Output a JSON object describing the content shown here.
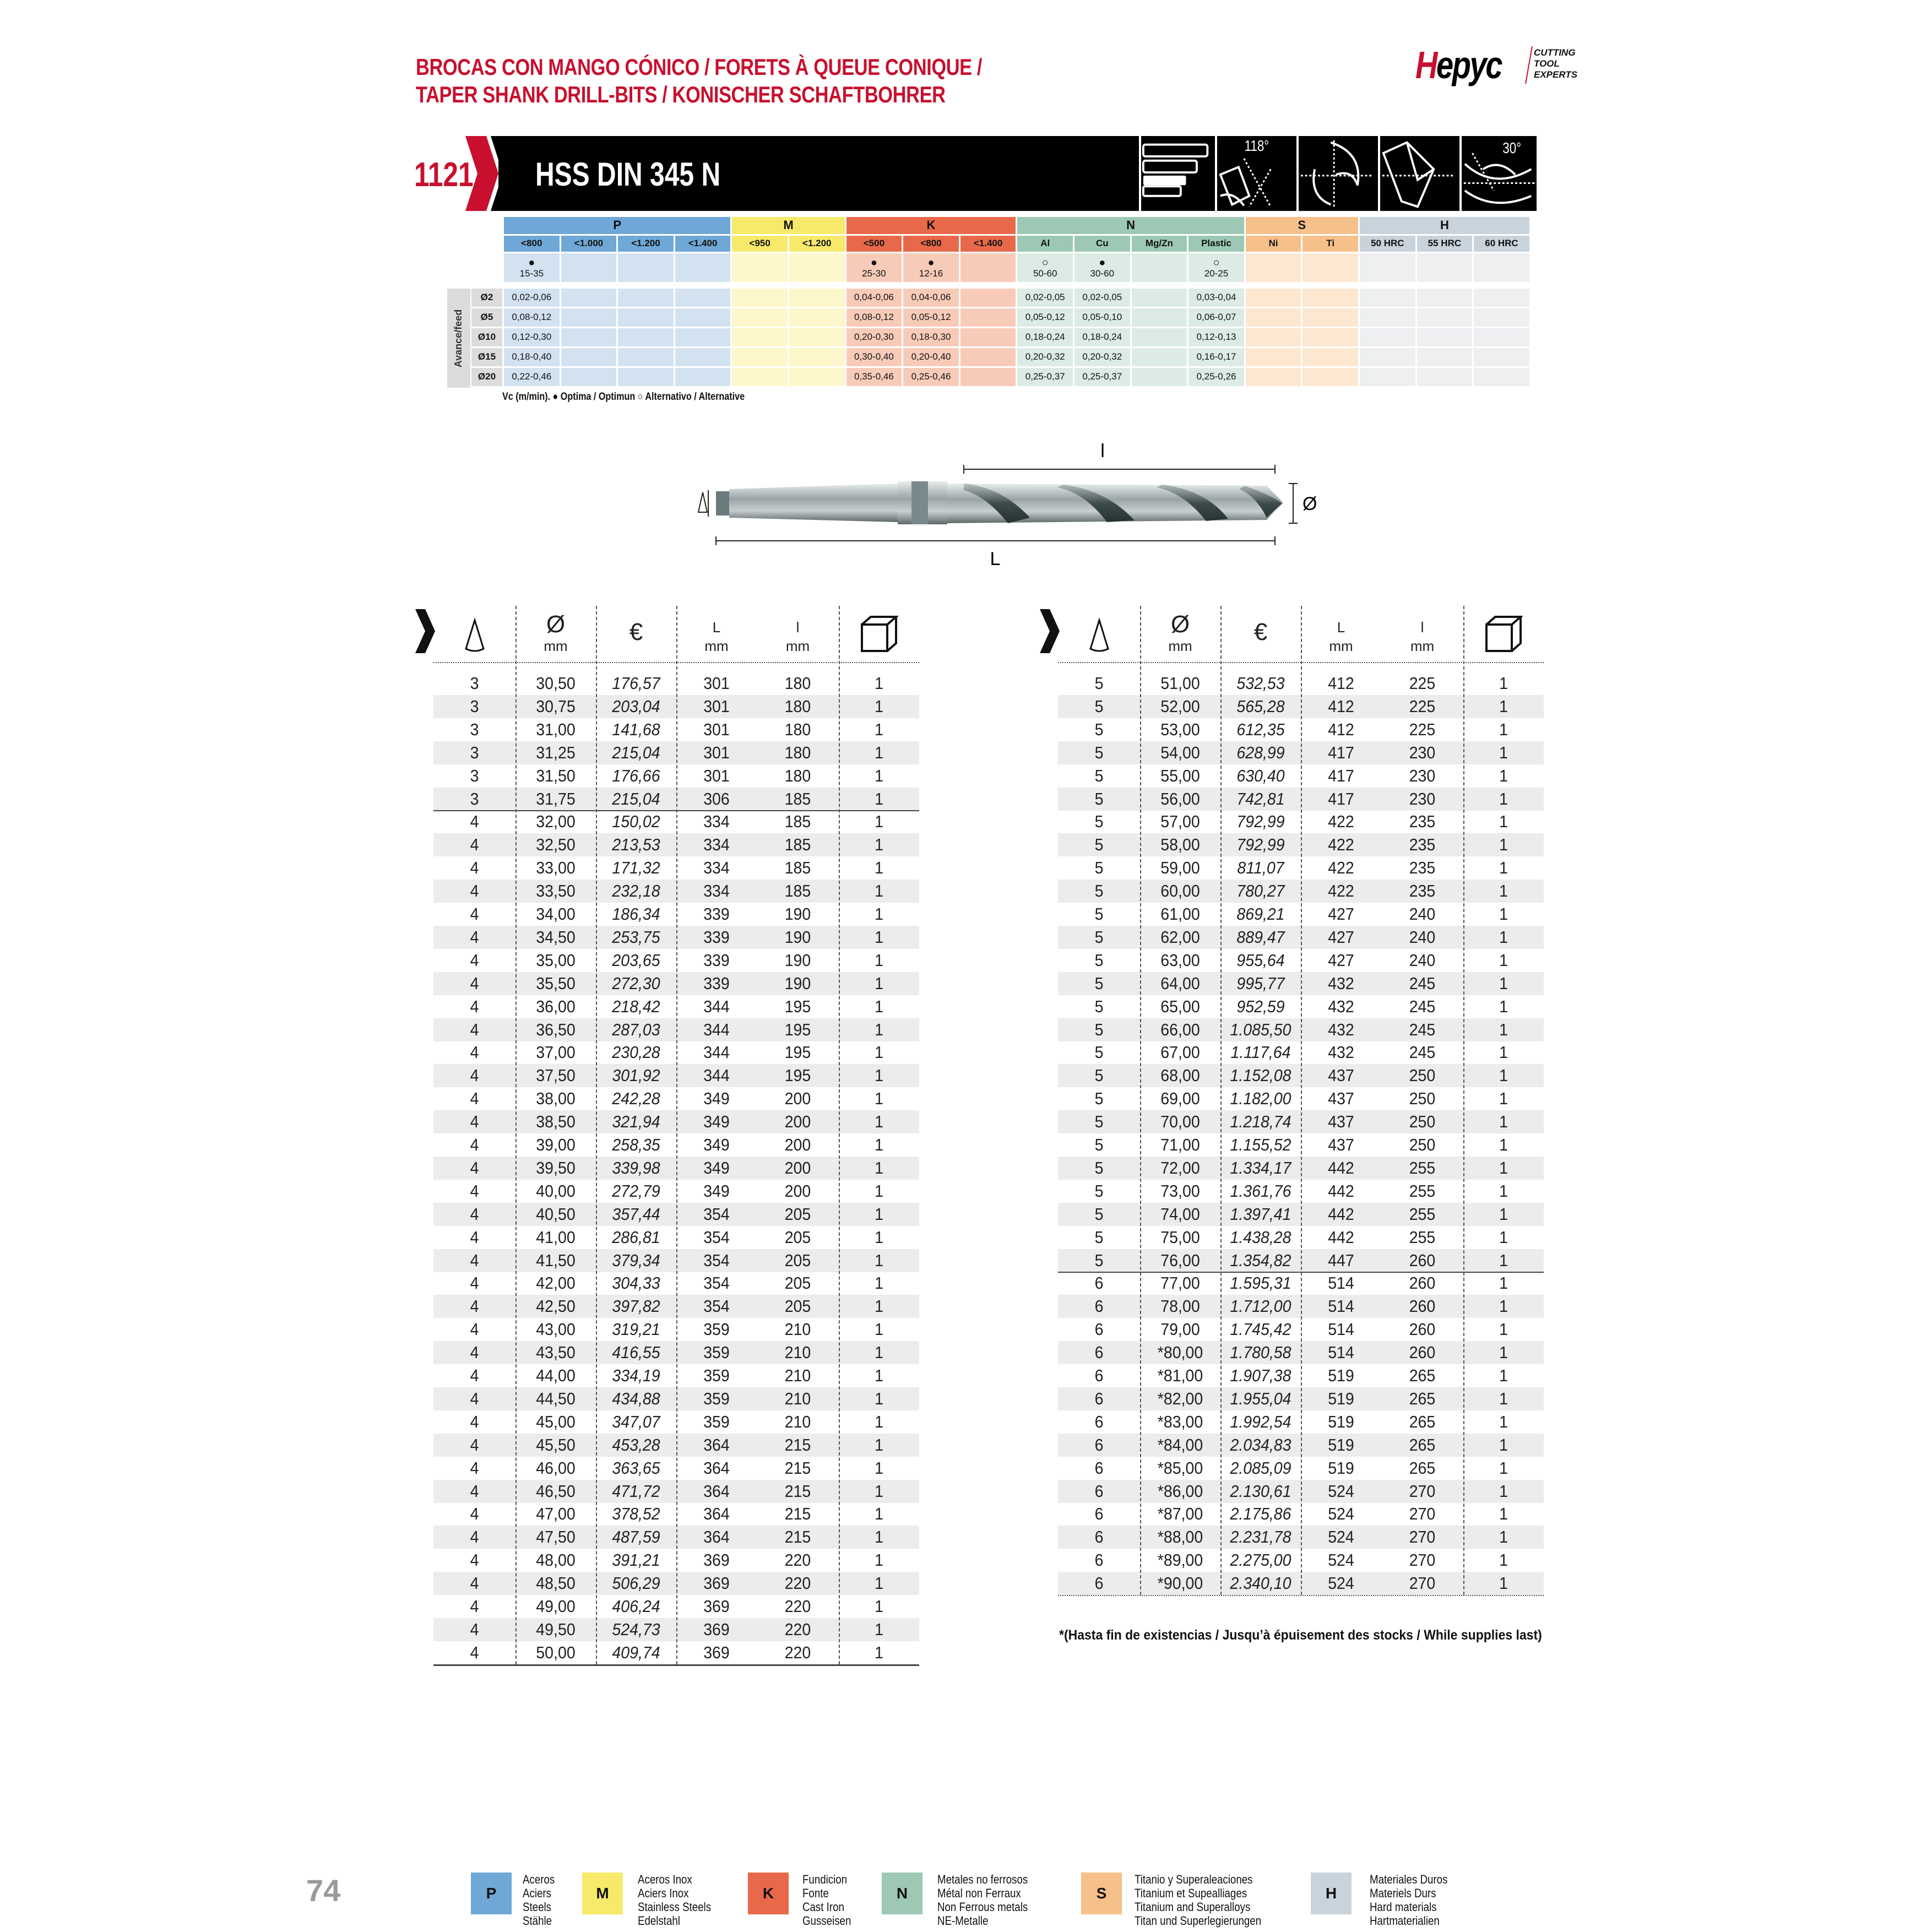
{
  "header": {
    "title_line1": "BROCAS CON MANGO CÓNICO / FORETS À QUEUE CONIQUE /",
    "title_line2": "TAPER SHANK DRILL-BITS / KONISCHER SCHAFTBOHRER",
    "logo": {
      "mark_red": "H",
      "mark": "epyc",
      "tagline": [
        "CUTTING",
        "TOOL",
        "EXPERTS"
      ]
    },
    "brand_color": "#c8102e"
  },
  "banner": {
    "code": "1121",
    "product": "HSS DIN 345 N",
    "icons": [
      {
        "name": "taper-shank-icon"
      },
      {
        "name": "point-angle-icon",
        "label": "118°"
      },
      {
        "name": "drill-type-n-icon"
      },
      {
        "name": "point-geometry-icon"
      },
      {
        "name": "helix-angle-icon",
        "label": "30°"
      }
    ]
  },
  "materials_table": {
    "row_label": "Avance/feed",
    "diameters": [
      "Ø2",
      "Ø5",
      "Ø10",
      "Ø15",
      "Ø20"
    ],
    "groups": [
      {
        "code": "P",
        "color": "#6fa8d6",
        "light": "#d3e2f1",
        "columns": [
          {
            "label": "<800",
            "mark": "optimum",
            "vc": "15-35",
            "feed": [
              "0,02-0,06",
              "0,08-0,12",
              "0,12-0,30",
              "0,18-0,40",
              "0,22-0,46"
            ]
          },
          {
            "label": "<1.000",
            "mark": "",
            "vc": "",
            "feed": [
              "",
              "",
              "",
              "",
              ""
            ]
          },
          {
            "label": "<1.200",
            "mark": "",
            "vc": "",
            "feed": [
              "",
              "",
              "",
              "",
              ""
            ]
          },
          {
            "label": "<1.400",
            "mark": "",
            "vc": "",
            "feed": [
              "",
              "",
              "",
              "",
              ""
            ]
          }
        ]
      },
      {
        "code": "M",
        "color": "#f7ea6a",
        "light": "#fdf7cb",
        "columns": [
          {
            "label": "<950",
            "mark": "",
            "vc": "",
            "feed": [
              "",
              "",
              "",
              "",
              ""
            ]
          },
          {
            "label": "<1.200",
            "mark": "",
            "vc": "",
            "feed": [
              "",
              "",
              "",
              "",
              ""
            ]
          }
        ]
      },
      {
        "code": "K",
        "color": "#e8694a",
        "light": "#f8cbb9",
        "columns": [
          {
            "label": "<500",
            "mark": "optimum",
            "vc": "25-30",
            "feed": [
              "0,04-0,06",
              "0,08-0,12",
              "0,20-0,30",
              "0,30-0,40",
              "0,35-0,46"
            ]
          },
          {
            "label": "<800",
            "mark": "optimum",
            "vc": "12-16",
            "feed": [
              "0,04-0,06",
              "0,05-0,12",
              "0,18-0,30",
              "0,20-0,40",
              "0,25-0,46"
            ]
          },
          {
            "label": "<1.400",
            "mark": "",
            "vc": "",
            "feed": [
              "",
              "",
              "",
              "",
              ""
            ]
          }
        ]
      },
      {
        "code": "N",
        "color": "#9cc8b4",
        "light": "#dcece4",
        "columns": [
          {
            "label": "Al",
            "mark": "alternative",
            "vc": "50-60",
            "feed": [
              "0,02-0,05",
              "0,05-0,12",
              "0,18-0,24",
              "0,20-0,32",
              "0,25-0,37"
            ]
          },
          {
            "label": "Cu",
            "mark": "optimum",
            "vc": "30-60",
            "feed": [
              "0,02-0,05",
              "0,05-0,10",
              "0,18-0,24",
              "0,20-0,32",
              "0,25-0,37"
            ]
          },
          {
            "label": "Mg/Zn",
            "mark": "",
            "vc": "",
            "feed": [
              "",
              "",
              "",
              "",
              ""
            ]
          },
          {
            "label": "Plastic",
            "mark": "alternative",
            "vc": "20-25",
            "feed": [
              "0,03-0,04",
              "0,06-0,07",
              "0,12-0,13",
              "0,16-0,17",
              "0,25-0,26"
            ]
          }
        ]
      },
      {
        "code": "S",
        "color": "#f6c08a",
        "light": "#fde7d1",
        "columns": [
          {
            "label": "Ni",
            "mark": "",
            "vc": "",
            "feed": [
              "",
              "",
              "",
              "",
              ""
            ]
          },
          {
            "label": "Ti",
            "mark": "",
            "vc": "",
            "feed": [
              "",
              "",
              "",
              "",
              ""
            ]
          }
        ]
      },
      {
        "code": "H",
        "color": "#c9d3dc",
        "light": "#edeff1",
        "columns": [
          {
            "label": "50 HRC",
            "mark": "",
            "vc": "",
            "feed": [
              "",
              "",
              "",
              "",
              ""
            ]
          },
          {
            "label": "55 HRC",
            "mark": "",
            "vc": "",
            "feed": [
              "",
              "",
              "",
              "",
              ""
            ]
          },
          {
            "label": "60 HRC",
            "mark": "",
            "vc": "",
            "feed": [
              "",
              "",
              "",
              "",
              ""
            ]
          }
        ]
      }
    ],
    "note": "Vc (m/min). ● Optima / Optimun  ○ Alternativo / Alternative"
  },
  "drawing": {
    "label_l": "l",
    "label_L": "L",
    "label_diameter": "Ø"
  },
  "product_table": {
    "headers": {
      "cone": "cone-icon",
      "diameter_symbol": "Ø",
      "diameter_unit": "mm",
      "price_symbol": "€",
      "L_label": "L",
      "L_unit": "mm",
      "l_label": "l",
      "l_unit": "mm",
      "pack": "box-icon"
    },
    "left_rows": [
      [
        "3",
        "30,50",
        "176,57",
        "301",
        "180",
        "1"
      ],
      [
        "3",
        "30,75",
        "203,04",
        "301",
        "180",
        "1"
      ],
      [
        "3",
        "31,00",
        "141,68",
        "301",
        "180",
        "1"
      ],
      [
        "3",
        "31,25",
        "215,04",
        "301",
        "180",
        "1"
      ],
      [
        "3",
        "31,50",
        "176,66",
        "301",
        "180",
        "1"
      ],
      [
        "3",
        "31,75",
        "215,04",
        "306",
        "185",
        "1"
      ],
      [
        "4",
        "32,00",
        "150,02",
        "334",
        "185",
        "1"
      ],
      [
        "4",
        "32,50",
        "213,53",
        "334",
        "185",
        "1"
      ],
      [
        "4",
        "33,00",
        "171,32",
        "334",
        "185",
        "1"
      ],
      [
        "4",
        "33,50",
        "232,18",
        "334",
        "185",
        "1"
      ],
      [
        "4",
        "34,00",
        "186,34",
        "339",
        "190",
        "1"
      ],
      [
        "4",
        "34,50",
        "253,75",
        "339",
        "190",
        "1"
      ],
      [
        "4",
        "35,00",
        "203,65",
        "339",
        "190",
        "1"
      ],
      [
        "4",
        "35,50",
        "272,30",
        "339",
        "190",
        "1"
      ],
      [
        "4",
        "36,00",
        "218,42",
        "344",
        "195",
        "1"
      ],
      [
        "4",
        "36,50",
        "287,03",
        "344",
        "195",
        "1"
      ],
      [
        "4",
        "37,00",
        "230,28",
        "344",
        "195",
        "1"
      ],
      [
        "4",
        "37,50",
        "301,92",
        "344",
        "195",
        "1"
      ],
      [
        "4",
        "38,00",
        "242,28",
        "349",
        "200",
        "1"
      ],
      [
        "4",
        "38,50",
        "321,94",
        "349",
        "200",
        "1"
      ],
      [
        "4",
        "39,00",
        "258,35",
        "349",
        "200",
        "1"
      ],
      [
        "4",
        "39,50",
        "339,98",
        "349",
        "200",
        "1"
      ],
      [
        "4",
        "40,00",
        "272,79",
        "349",
        "200",
        "1"
      ],
      [
        "4",
        "40,50",
        "357,44",
        "354",
        "205",
        "1"
      ],
      [
        "4",
        "41,00",
        "286,81",
        "354",
        "205",
        "1"
      ],
      [
        "4",
        "41,50",
        "379,34",
        "354",
        "205",
        "1"
      ],
      [
        "4",
        "42,00",
        "304,33",
        "354",
        "205",
        "1"
      ],
      [
        "4",
        "42,50",
        "397,82",
        "354",
        "205",
        "1"
      ],
      [
        "4",
        "43,00",
        "319,21",
        "359",
        "210",
        "1"
      ],
      [
        "4",
        "43,50",
        "416,55",
        "359",
        "210",
        "1"
      ],
      [
        "4",
        "44,00",
        "334,19",
        "359",
        "210",
        "1"
      ],
      [
        "4",
        "44,50",
        "434,88",
        "359",
        "210",
        "1"
      ],
      [
        "4",
        "45,00",
        "347,07",
        "359",
        "210",
        "1"
      ],
      [
        "4",
        "45,50",
        "453,28",
        "364",
        "215",
        "1"
      ],
      [
        "4",
        "46,00",
        "363,65",
        "364",
        "215",
        "1"
      ],
      [
        "4",
        "46,50",
        "471,72",
        "364",
        "215",
        "1"
      ],
      [
        "4",
        "47,00",
        "378,52",
        "364",
        "215",
        "1"
      ],
      [
        "4",
        "47,50",
        "487,59",
        "364",
        "215",
        "1"
      ],
      [
        "4",
        "48,00",
        "391,21",
        "369",
        "220",
        "1"
      ],
      [
        "4",
        "48,50",
        "506,29",
        "369",
        "220",
        "1"
      ],
      [
        "4",
        "49,00",
        "406,24",
        "369",
        "220",
        "1"
      ],
      [
        "4",
        "49,50",
        "524,73",
        "369",
        "220",
        "1"
      ],
      [
        "4",
        "50,00",
        "409,74",
        "369",
        "220",
        "1"
      ]
    ],
    "right_rows": [
      [
        "5",
        "51,00",
        "532,53",
        "412",
        "225",
        "1"
      ],
      [
        "5",
        "52,00",
        "565,28",
        "412",
        "225",
        "1"
      ],
      [
        "5",
        "53,00",
        "612,35",
        "412",
        "225",
        "1"
      ],
      [
        "5",
        "54,00",
        "628,99",
        "417",
        "230",
        "1"
      ],
      [
        "5",
        "55,00",
        "630,40",
        "417",
        "230",
        "1"
      ],
      [
        "5",
        "56,00",
        "742,81",
        "417",
        "230",
        "1"
      ],
      [
        "5",
        "57,00",
        "792,99",
        "422",
        "235",
        "1"
      ],
      [
        "5",
        "58,00",
        "792,99",
        "422",
        "235",
        "1"
      ],
      [
        "5",
        "59,00",
        "811,07",
        "422",
        "235",
        "1"
      ],
      [
        "5",
        "60,00",
        "780,27",
        "422",
        "235",
        "1"
      ],
      [
        "5",
        "61,00",
        "869,21",
        "427",
        "240",
        "1"
      ],
      [
        "5",
        "62,00",
        "889,47",
        "427",
        "240",
        "1"
      ],
      [
        "5",
        "63,00",
        "955,64",
        "427",
        "240",
        "1"
      ],
      [
        "5",
        "64,00",
        "995,77",
        "432",
        "245",
        "1"
      ],
      [
        "5",
        "65,00",
        "952,59",
        "432",
        "245",
        "1"
      ],
      [
        "5",
        "66,00",
        "1.085,50",
        "432",
        "245",
        "1"
      ],
      [
        "5",
        "67,00",
        "1.117,64",
        "432",
        "245",
        "1"
      ],
      [
        "5",
        "68,00",
        "1.152,08",
        "437",
        "250",
        "1"
      ],
      [
        "5",
        "69,00",
        "1.182,00",
        "437",
        "250",
        "1"
      ],
      [
        "5",
        "70,00",
        "1.218,74",
        "437",
        "250",
        "1"
      ],
      [
        "5",
        "71,00",
        "1.155,52",
        "437",
        "250",
        "1"
      ],
      [
        "5",
        "72,00",
        "1.334,17",
        "442",
        "255",
        "1"
      ],
      [
        "5",
        "73,00",
        "1.361,76",
        "442",
        "255",
        "1"
      ],
      [
        "5",
        "74,00",
        "1.397,41",
        "442",
        "255",
        "1"
      ],
      [
        "5",
        "75,00",
        "1.438,28",
        "442",
        "255",
        "1"
      ],
      [
        "5",
        "76,00",
        "1.354,82",
        "447",
        "260",
        "1"
      ],
      [
        "6",
        "77,00",
        "1.595,31",
        "514",
        "260",
        "1"
      ],
      [
        "6",
        "78,00",
        "1.712,00",
        "514",
        "260",
        "1"
      ],
      [
        "6",
        "79,00",
        "1.745,42",
        "514",
        "260",
        "1"
      ],
      [
        "6",
        "*80,00",
        "1.780,58",
        "514",
        "260",
        "1"
      ],
      [
        "6",
        "*81,00",
        "1.907,38",
        "519",
        "265",
        "1"
      ],
      [
        "6",
        "*82,00",
        "1.955,04",
        "519",
        "265",
        "1"
      ],
      [
        "6",
        "*83,00",
        "1.992,54",
        "519",
        "265",
        "1"
      ],
      [
        "6",
        "*84,00",
        "2.034,83",
        "519",
        "265",
        "1"
      ],
      [
        "6",
        "*85,00",
        "2.085,09",
        "519",
        "265",
        "1"
      ],
      [
        "6",
        "*86,00",
        "2.130,61",
        "524",
        "270",
        "1"
      ],
      [
        "6",
        "*87,00",
        "2.175,86",
        "524",
        "270",
        "1"
      ],
      [
        "6",
        "*88,00",
        "2.231,78",
        "524",
        "270",
        "1"
      ],
      [
        "6",
        "*89,00",
        "2.275,00",
        "524",
        "270",
        "1"
      ],
      [
        "6",
        "*90,00",
        "2.340,10",
        "524",
        "270",
        "1"
      ]
    ],
    "footnote": "*(Hasta fin de existencias / Jusqu’à épuisement des stocks / While supplies last)"
  },
  "footer": {
    "page_number": "74",
    "legend": [
      {
        "code": "P",
        "color": "#6fa8d6",
        "lines": [
          "Aceros",
          "Aciers",
          "Steels",
          "Stähle"
        ]
      },
      {
        "code": "M",
        "color": "#f7ea6a",
        "lines": [
          "Aceros Inox",
          "Aciers Inox",
          "Stainless Steels",
          "Edelstahl"
        ]
      },
      {
        "code": "K",
        "color": "#e8694a",
        "lines": [
          "Fundicion",
          "Fonte",
          "Cast Iron",
          "Gusseisen"
        ]
      },
      {
        "code": "N",
        "color": "#9cc8b4",
        "lines": [
          "Metales no ferrosos",
          "Métal non Ferraux",
          "Non Ferrous metals",
          "NE-Metalle"
        ]
      },
      {
        "code": "S",
        "color": "#f6c08a",
        "lines": [
          "Titanio y Superaleaciones",
          "Titanium et Supealliages",
          "Titanium and Superalloys",
          "Titan und Superlegierungen"
        ]
      },
      {
        "code": "H",
        "color": "#c9d3dc",
        "lines": [
          "Materiales Duros",
          "Materiels Durs",
          "Hard materials",
          "Hartmaterialien"
        ]
      }
    ]
  }
}
